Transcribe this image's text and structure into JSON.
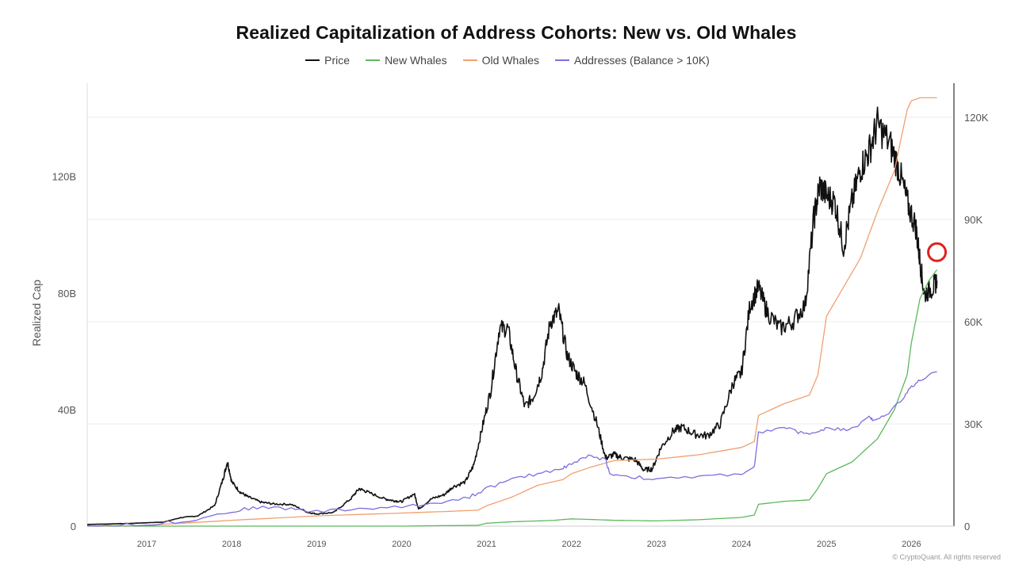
{
  "chart_data": {
    "type": "line",
    "title": "Realized Capitalization of Address Cohorts: New vs. Old Whales",
    "ylabel_left": "Realized Cap",
    "ylabel_right": "",
    "xlabel": "",
    "x_ticks": [
      "2017",
      "2018",
      "2019",
      "2020",
      "2021",
      "2022",
      "2023",
      "2024",
      "2025",
      "2026"
    ],
    "y_left_ticks": [
      "0",
      "40B",
      "80B",
      "120B"
    ],
    "y_right_ticks": [
      "0",
      "30K",
      "60K",
      "90K",
      "120K"
    ],
    "y_left_range": [
      0,
      152
    ],
    "y_right_range": [
      0,
      130000
    ],
    "x_range": [
      2016.3,
      2026.5
    ],
    "grid": true,
    "legend_position": "top-center",
    "annotation": "red circle marking New Whales line near 2026.3",
    "series": [
      {
        "name": "Price",
        "axis": "right",
        "color": "#111111",
        "x": [
          2016.3,
          2016.5,
          2016.8,
          2017.0,
          2017.2,
          2017.4,
          2017.6,
          2017.8,
          2017.9,
          2017.95,
          2018.0,
          2018.1,
          2018.2,
          2018.35,
          2018.5,
          2018.7,
          2018.9,
          2019.0,
          2019.2,
          2019.4,
          2019.5,
          2019.6,
          2019.8,
          2019.9,
          2020.0,
          2020.15,
          2020.2,
          2020.35,
          2020.5,
          2020.6,
          2020.75,
          2020.85,
          2020.95,
          2021.05,
          2021.15,
          2021.25,
          2021.35,
          2021.45,
          2021.55,
          2021.65,
          2021.75,
          2021.85,
          2021.95,
          2022.05,
          2022.15,
          2022.3,
          2022.4,
          2022.5,
          2022.6,
          2022.75,
          2022.85,
          2022.95,
          2023.05,
          2023.2,
          2023.3,
          2023.45,
          2023.6,
          2023.75,
          2023.9,
          2024.0,
          2024.1,
          2024.2,
          2024.3,
          2024.45,
          2024.6,
          2024.75,
          2024.85,
          2024.92,
          2025.0,
          2025.1,
          2025.2,
          2025.3,
          2025.4,
          2025.5,
          2025.6,
          2025.75,
          2025.85,
          2025.95,
          2026.05,
          2026.1,
          2026.15,
          2026.25,
          2026.3
        ],
        "y": [
          500,
          600,
          800,
          1000,
          1200,
          2500,
          3000,
          6000,
          14000,
          19000,
          13000,
          10000,
          8500,
          7000,
          6500,
          6400,
          4000,
          3600,
          4000,
          8000,
          11000,
          10000,
          8000,
          7500,
          7200,
          9500,
          5000,
          8000,
          9200,
          11500,
          13000,
          18000,
          29000,
          40000,
          58000,
          58000,
          45000,
          35000,
          38000,
          45000,
          60000,
          63000,
          50000,
          45000,
          42000,
          30000,
          20000,
          21000,
          20000,
          19500,
          16500,
          16800,
          23000,
          28000,
          29000,
          27000,
          26500,
          30000,
          42000,
          45000,
          65000,
          70000,
          63000,
          58000,
          60000,
          65000,
          90000,
          100000,
          97000,
          95000,
          82000,
          95000,
          105000,
          110000,
          118000,
          112000,
          105000,
          95000,
          88000,
          78000,
          68000,
          70000,
          72000
        ]
      },
      {
        "name": "New Whales",
        "axis": "left",
        "color": "#5cb85c",
        "x": [
          2016.3,
          2017.0,
          2018.0,
          2019.0,
          2020.0,
          2020.9,
          2021.0,
          2021.3,
          2021.8,
          2022.0,
          2022.5,
          2023.0,
          2023.5,
          2024.0,
          2024.15,
          2024.2,
          2024.5,
          2024.8,
          2024.9,
          2025.0,
          2025.3,
          2025.6,
          2025.8,
          2025.95,
          2026.0,
          2026.1,
          2026.2,
          2026.3
        ],
        "y": [
          0,
          0,
          0,
          0,
          0,
          0.3,
          1.0,
          1.5,
          2.0,
          2.5,
          2.0,
          1.8,
          2.2,
          3.0,
          3.8,
          7.5,
          8.5,
          9.0,
          13.0,
          18.0,
          22.0,
          30.0,
          40.0,
          52.0,
          63.0,
          78.0,
          84.0,
          88.0
        ]
      },
      {
        "name": "Old Whales",
        "axis": "left",
        "color": "#f0a070",
        "x": [
          2016.3,
          2017.0,
          2018.0,
          2019.0,
          2020.0,
          2020.5,
          2020.9,
          2021.0,
          2021.3,
          2021.6,
          2021.9,
          2022.0,
          2022.2,
          2022.5,
          2023.0,
          2023.5,
          2024.0,
          2024.15,
          2024.2,
          2024.5,
          2024.8,
          2024.9,
          2025.0,
          2025.2,
          2025.4,
          2025.6,
          2025.8,
          2025.95,
          2026.0,
          2026.1,
          2026.3
        ],
        "y": [
          0,
          0.3,
          2.0,
          3.5,
          4.5,
          5.0,
          5.5,
          7.0,
          10.0,
          14.0,
          16.0,
          18.0,
          20.0,
          22.5,
          23.0,
          24.5,
          27.0,
          29.0,
          38.0,
          42.0,
          45.0,
          52.0,
          72.0,
          82.0,
          92.0,
          108.0,
          122.0,
          143.0,
          146.0,
          147.0,
          147.0
        ]
      },
      {
        "name": "Addresses (Balance > 10K)",
        "axis": "left",
        "color": "#7b6fe0",
        "x": [
          2016.3,
          2017.0,
          2017.5,
          2018.0,
          2018.3,
          2018.7,
          2019.0,
          2019.5,
          2020.0,
          2020.4,
          2020.8,
          2021.0,
          2021.3,
          2021.6,
          2021.9,
          2022.0,
          2022.2,
          2022.4,
          2022.45,
          2022.7,
          2023.0,
          2023.5,
          2024.0,
          2024.15,
          2024.2,
          2024.5,
          2024.7,
          2024.9,
          2025.0,
          2025.2,
          2025.4,
          2025.5,
          2025.55,
          2025.7,
          2025.9,
          2026.0,
          2026.1,
          2026.3
        ],
        "y": [
          0,
          0.5,
          2.0,
          5.0,
          6.5,
          6.0,
          5.0,
          6.0,
          6.5,
          8.0,
          10.0,
          13.0,
          16.0,
          18.0,
          20.0,
          21.5,
          24.0,
          23.0,
          18.0,
          17.0,
          16.0,
          17.0,
          18.0,
          20.0,
          32.0,
          34.0,
          32.0,
          32.0,
          34.0,
          33.0,
          35.0,
          38.0,
          36.0,
          38.0,
          44.0,
          48.0,
          50.0,
          53.0
        ]
      }
    ]
  },
  "footer_text": "© CryptoQuant. All rights reserved"
}
